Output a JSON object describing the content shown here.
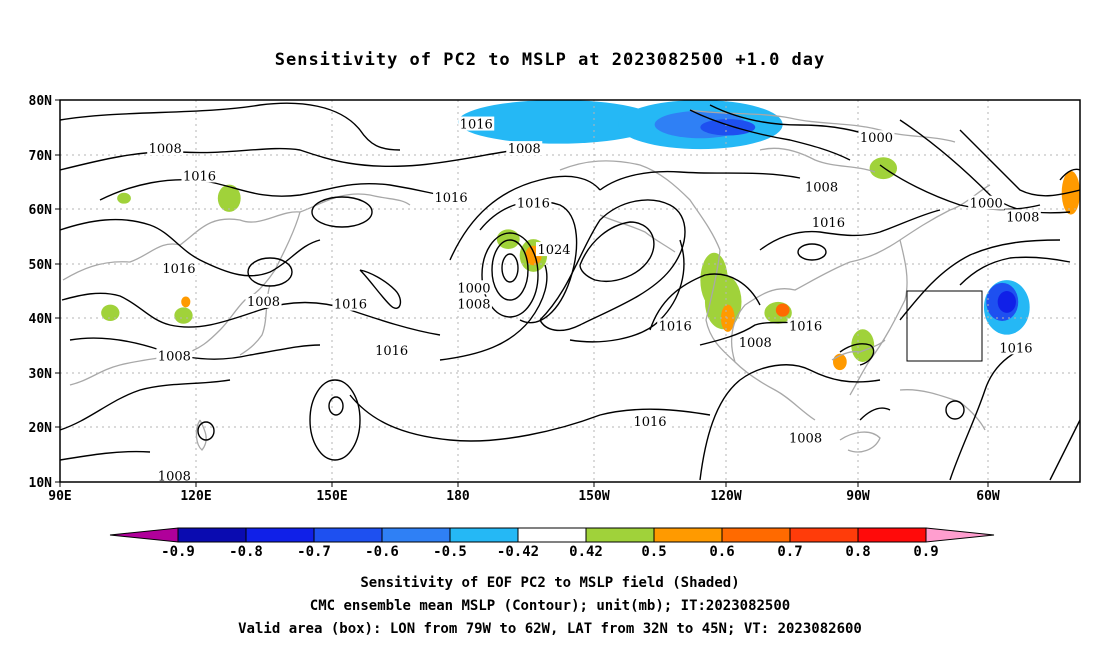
{
  "title": "Sensitivity of PC2 to MSLP at 2023082500 +1.0 day",
  "captions": [
    "Sensitivity of EOF PC2 to MSLP field (Shaded)",
    "CMC ensemble mean MSLP (Contour); unit(mb); IT:2023082500",
    "Valid area (box): LON from 79W to 62W, LAT from 32N to 45N; VT: 2023082600"
  ],
  "lat_labels": [
    "80N",
    "70N",
    "60N",
    "50N",
    "40N",
    "30N",
    "20N",
    "10N"
  ],
  "lon_labels": [
    "90E",
    "120E",
    "150E",
    "180",
    "150W",
    "120W",
    "90W",
    "60W"
  ],
  "contour_labels": [
    {
      "text": "1016",
      "lon": 181,
      "lat": 75.5
    },
    {
      "text": "1008",
      "lon": 113,
      "lat": 71
    },
    {
      "text": "1016",
      "lon": 120.5,
      "lat": 66
    },
    {
      "text": "1008",
      "lon": 191.5,
      "lat": 71
    },
    {
      "text": "1016",
      "lon": 175.5,
      "lat": 62
    },
    {
      "text": "1016",
      "lon": 193.5,
      "lat": 61
    },
    {
      "text": "1000",
      "lon": 268.5,
      "lat": 73
    },
    {
      "text": "1008",
      "lon": 256.5,
      "lat": 64
    },
    {
      "text": "1016",
      "lon": 258,
      "lat": 57.5
    },
    {
      "text": "1000",
      "lon": 292.5,
      "lat": 61
    },
    {
      "text": "1008",
      "lon": 300.5,
      "lat": 58.5
    },
    {
      "text": "1024",
      "lon": 198,
      "lat": 52.5
    },
    {
      "text": "1016",
      "lon": 116,
      "lat": 49
    },
    {
      "text": "1008",
      "lon": 134.5,
      "lat": 43
    },
    {
      "text": "1016",
      "lon": 153.5,
      "lat": 42.5
    },
    {
      "text": "1000",
      "lon": 180.5,
      "lat": 45.5
    },
    {
      "text": "1008",
      "lon": 180.5,
      "lat": 42.5
    },
    {
      "text": "1016",
      "lon": 224.5,
      "lat": 38.5
    },
    {
      "text": "1016",
      "lon": 253,
      "lat": 38.5
    },
    {
      "text": "1008",
      "lon": 242,
      "lat": 35.5
    },
    {
      "text": "1008",
      "lon": 115,
      "lat": 33
    },
    {
      "text": "1016",
      "lon": 162.5,
      "lat": 34
    },
    {
      "text": "1016",
      "lon": 299,
      "lat": 34.5
    },
    {
      "text": "1016",
      "lon": 219,
      "lat": 21
    },
    {
      "text": "1008",
      "lon": 253,
      "lat": 18
    },
    {
      "text": "1008",
      "lon": 115,
      "lat": 11
    }
  ],
  "valid_box": {
    "lon_min": -79,
    "lon_max": -62,
    "lat_min": 32,
    "lat_max": 45
  },
  "colorbar": {
    "ticks": [
      "-0.9",
      "-0.8",
      "-0.7",
      "-0.6",
      "-0.5",
      "-0.42",
      "0.42",
      "0.5",
      "0.6",
      "0.7",
      "0.8",
      "0.9"
    ],
    "colors": [
      "#b0009a",
      "#0a0bb0",
      "#1020e8",
      "#1e50f0",
      "#2f80f5",
      "#25b8f5",
      "#ffffff",
      "#a0d23a",
      "#ff9a00",
      "#ff6a00",
      "#ff3c0a",
      "#ff0a0a",
      "#ff9ecf"
    ]
  },
  "shading": [
    {
      "lon": 199,
      "lat": 76,
      "rx": 22,
      "ry": 4,
      "level": "-0.42",
      "color": "#25b8f5"
    },
    {
      "lon": 230,
      "lat": 75.5,
      "rx": 18,
      "ry": 4.5,
      "level": "-0.42",
      "color": "#25b8f5"
    },
    {
      "lon": 230,
      "lat": 75.5,
      "rx": 10,
      "ry": 2.5,
      "level": "-0.5",
      "color": "#2f80f5"
    },
    {
      "lon": 236,
      "lat": 75,
      "rx": 6,
      "ry": 1.5,
      "level": "-0.6",
      "color": "#1e50f0"
    },
    {
      "lon": 297,
      "lat": 42,
      "rx": 5,
      "ry": 5,
      "level": "-0.42",
      "color": "#25b8f5"
    },
    {
      "lon": 296,
      "lat": 43,
      "rx": 3.5,
      "ry": 3.5,
      "level": "-0.6",
      "color": "#1e50f0"
    },
    {
      "lon": 297,
      "lat": 43,
      "rx": 2,
      "ry": 2,
      "level": "-0.7",
      "color": "#1020e8"
    },
    {
      "lon": 193.5,
      "lat": 51.5,
      "rx": 3,
      "ry": 3,
      "level": "0.42",
      "color": "#a0d23a"
    },
    {
      "lon": 193.5,
      "lat": 51.5,
      "rx": 1.8,
      "ry": 1.8,
      "level": "0.5",
      "color": "#ff9a00"
    },
    {
      "lon": 188,
      "lat": 54.5,
      "rx": 2.5,
      "ry": 1.8,
      "level": "0.5",
      "color": "#a0d23a"
    },
    {
      "lon": 233,
      "lat": 47,
      "rx": 3,
      "ry": 5,
      "level": "0.42",
      "color": "#a0d23a"
    },
    {
      "lon": 235,
      "lat": 43,
      "rx": 4,
      "ry": 5,
      "level": "0.42",
      "color": "#a0d23a"
    },
    {
      "lon": 236,
      "lat": 40,
      "rx": 1.5,
      "ry": 2.5,
      "level": "0.5",
      "color": "#ff9a00"
    },
    {
      "lon": 247,
      "lat": 41,
      "rx": 3,
      "ry": 2,
      "level": "0.42",
      "color": "#a0d23a"
    },
    {
      "lon": 248,
      "lat": 41.5,
      "rx": 1.5,
      "ry": 1.2,
      "level": "0.6",
      "color": "#ff6a00"
    },
    {
      "lon": 265.5,
      "lat": 35,
      "rx": 2.5,
      "ry": 3,
      "level": "0.42",
      "color": "#a0d23a"
    },
    {
      "lon": 260.5,
      "lat": 32,
      "rx": 1.5,
      "ry": 1.5,
      "level": "0.5",
      "color": "#ff9a00"
    },
    {
      "lon": 270,
      "lat": 67.5,
      "rx": 3,
      "ry": 2,
      "level": "0.42",
      "color": "#a0d23a"
    },
    {
      "lon": 311,
      "lat": 63,
      "rx": 2,
      "ry": 4,
      "level": "0.5",
      "color": "#ff9a00"
    },
    {
      "lon": 127,
      "lat": 62,
      "rx": 2.5,
      "ry": 2.5,
      "level": "0.42",
      "color": "#a0d23a"
    },
    {
      "lon": 117,
      "lat": 40.5,
      "rx": 2,
      "ry": 1.5,
      "level": "0.42",
      "color": "#a0d23a"
    },
    {
      "lon": 117.5,
      "lat": 43,
      "rx": 1,
      "ry": 1,
      "level": "0.5",
      "color": "#ff9a00"
    },
    {
      "lon": 101,
      "lat": 41,
      "rx": 2,
      "ry": 1.5,
      "level": "0.42",
      "color": "#a0d23a"
    },
    {
      "lon": 104,
      "lat": 62,
      "rx": 1.5,
      "ry": 1,
      "level": "0.42",
      "color": "#a0d23a"
    }
  ]
}
